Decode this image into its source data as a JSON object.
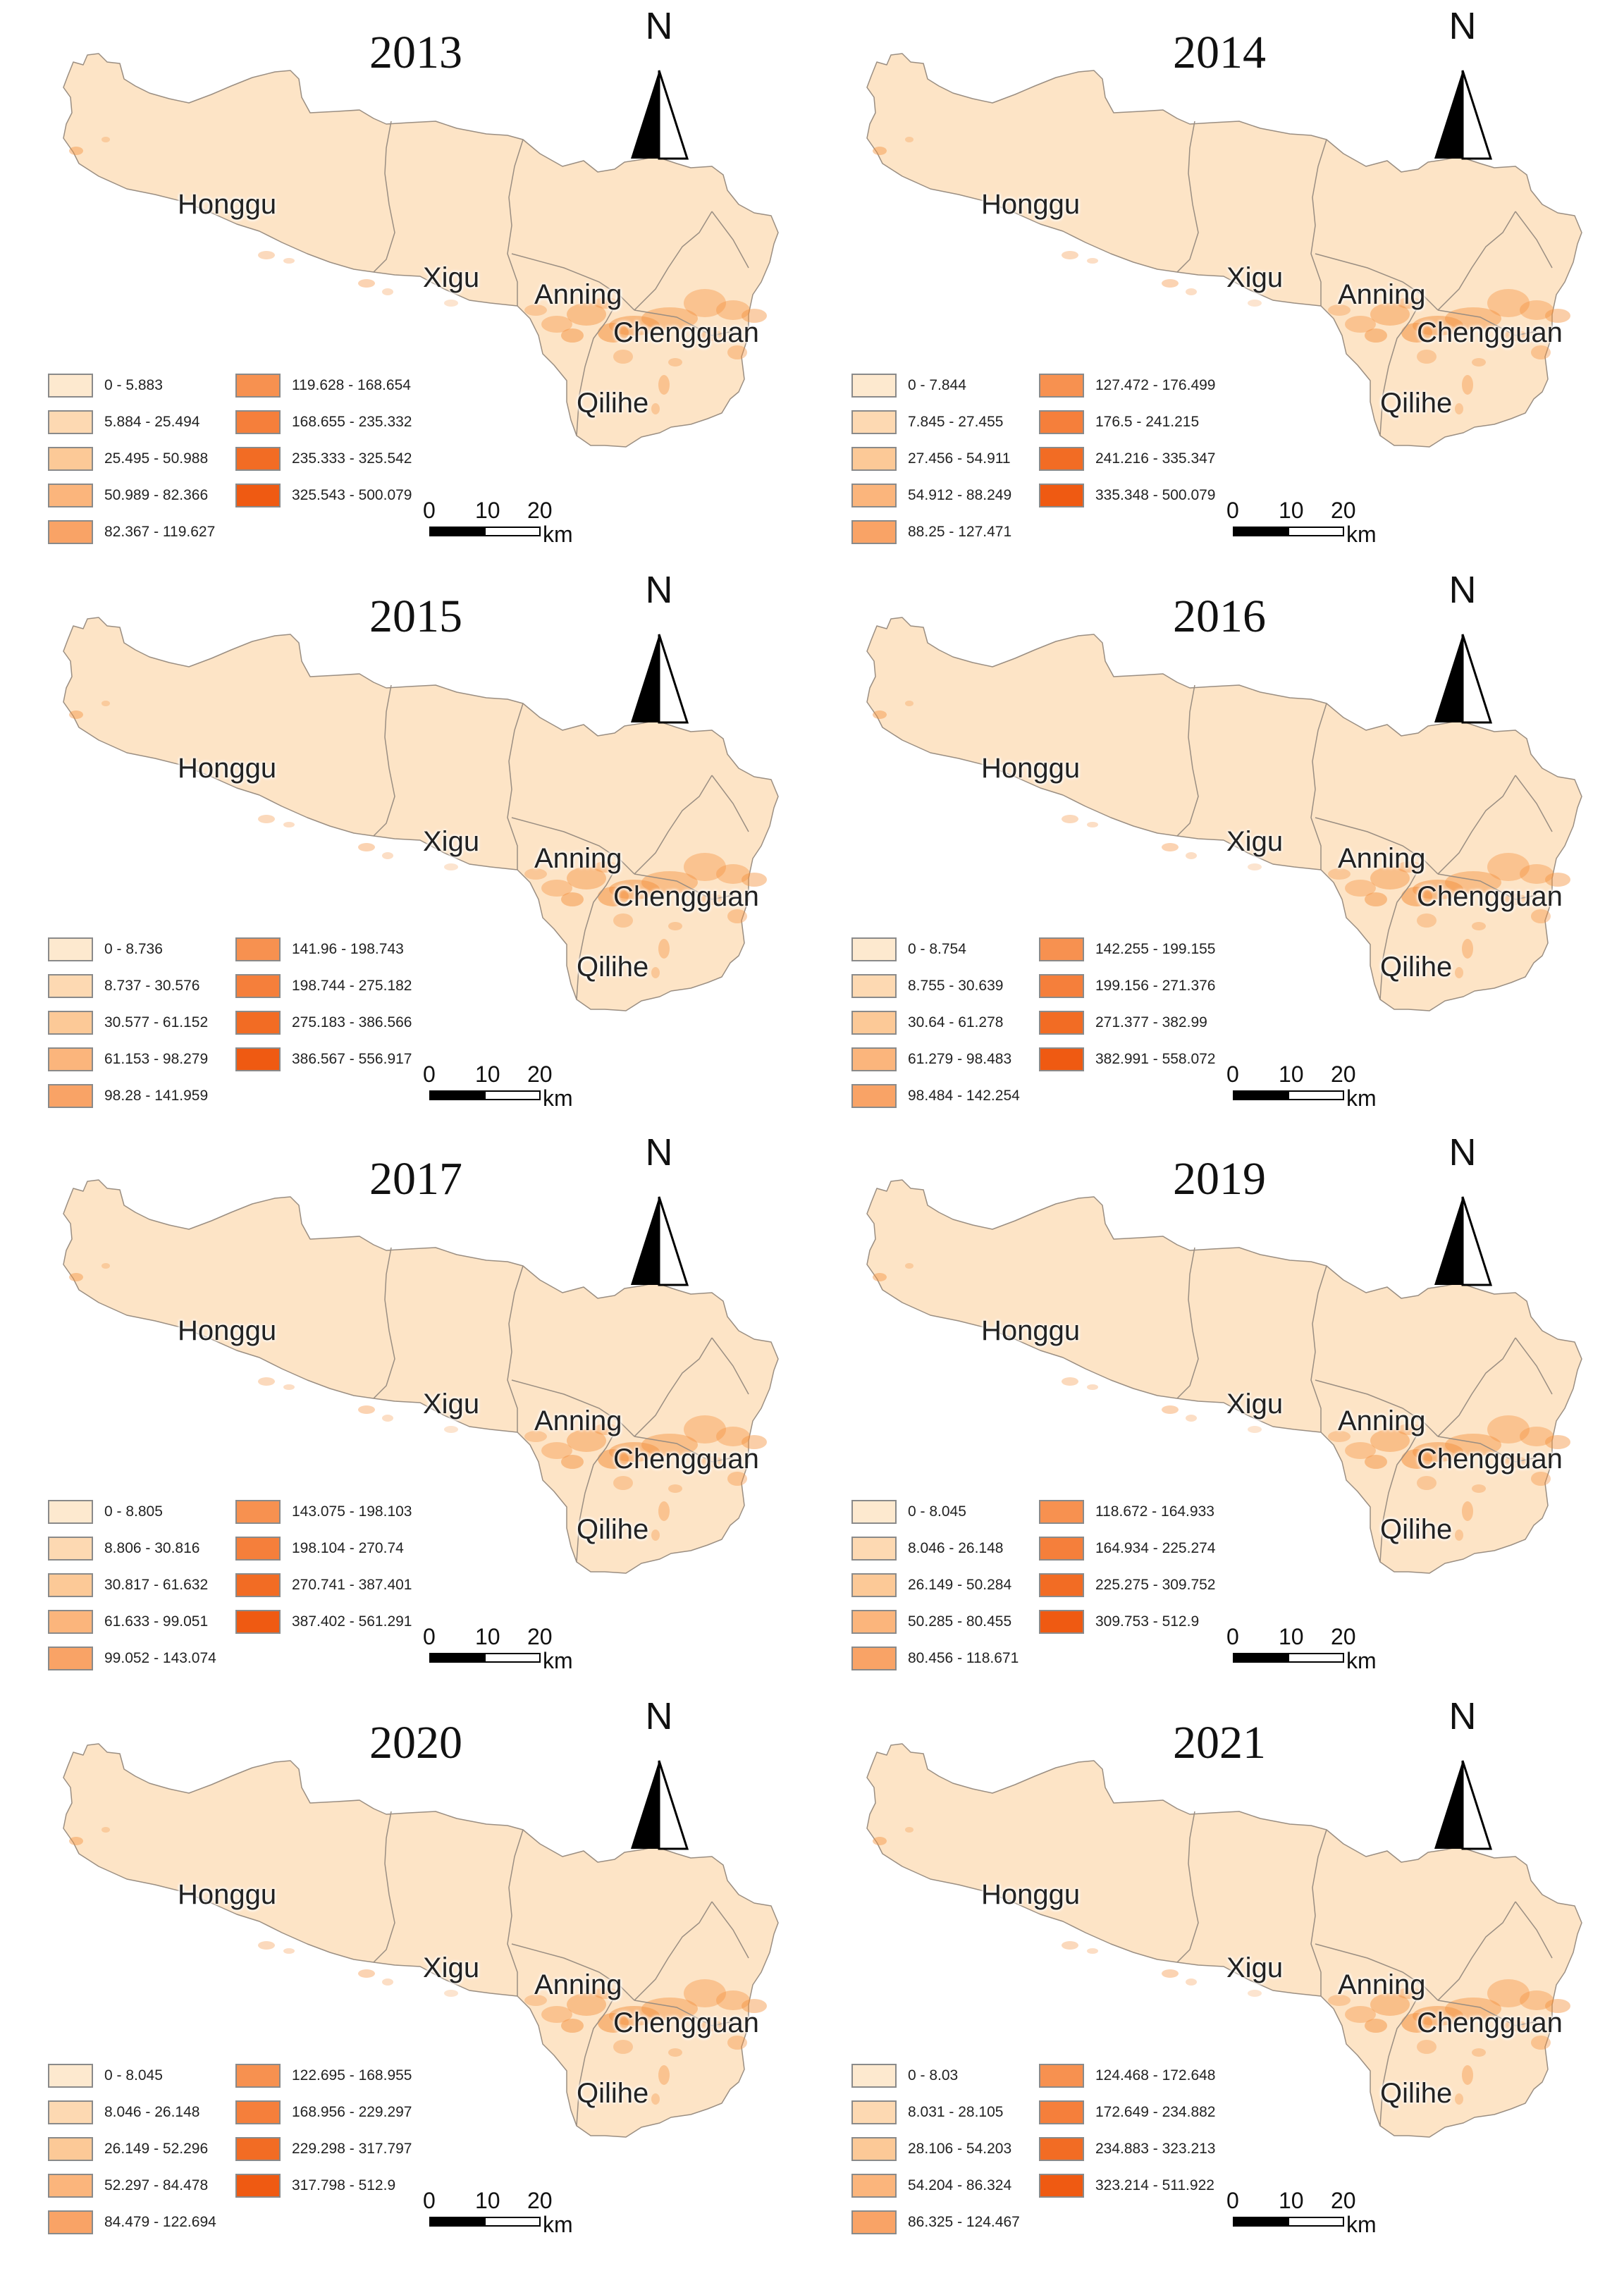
{
  "map_labels": {
    "districts": [
      "Honggu",
      "Xigu",
      "Anning",
      "Chengguan",
      "Qilihe"
    ],
    "north": "N",
    "scale_ticks": [
      "0",
      "10",
      "20"
    ],
    "scale_unit": "km"
  },
  "legend_colors": [
    "#fde9cf",
    "#fdd9b2",
    "#fcc997",
    "#fbb57c",
    "#f9a366",
    "#f79150",
    "#f57f3b",
    "#f26c24",
    "#ef5a12"
  ],
  "panels": [
    {
      "year": "2013",
      "legend": [
        "0 - 5.883",
        "5.884 - 25.494",
        "25.495 - 50.988",
        "50.989 - 82.366",
        "82.367 - 119.627",
        "119.628 - 168.654",
        "168.655 - 235.332",
        "235.333 - 325.542",
        "325.543 - 500.079"
      ]
    },
    {
      "year": "2014",
      "legend": [
        "0 - 7.844",
        "7.845 - 27.455",
        "27.456 - 54.911",
        "54.912 - 88.249",
        "88.25 - 127.471",
        "127.472 - 176.499",
        "176.5 - 241.215",
        "241.216 - 335.347",
        "335.348 - 500.079"
      ]
    },
    {
      "year": "2015",
      "legend": [
        "0 - 8.736",
        "8.737 - 30.576",
        "30.577 - 61.152",
        "61.153 - 98.279",
        "98.28 - 141.959",
        "141.96 - 198.743",
        "198.744 - 275.182",
        "275.183 - 386.566",
        "386.567 - 556.917"
      ]
    },
    {
      "year": "2016",
      "legend": [
        "0 - 8.754",
        "8.755 - 30.639",
        "30.64 - 61.278",
        "61.279 - 98.483",
        "98.484 - 142.254",
        "142.255 - 199.155",
        "199.156 - 271.376",
        "271.377 - 382.99",
        "382.991 - 558.072"
      ]
    },
    {
      "year": "2017",
      "legend": [
        "0 - 8.805",
        "8.806 - 30.816",
        "30.817 - 61.632",
        "61.633 - 99.051",
        "99.052 - 143.074",
        "143.075 - 198.103",
        "198.104 - 270.74",
        "270.741 - 387.401",
        "387.402 - 561.291"
      ]
    },
    {
      "year": "2019",
      "legend": [
        "0 - 8.045",
        "8.046 - 26.148",
        "26.149 - 50.284",
        "50.285 - 80.455",
        "80.456 - 118.671",
        "118.672 - 164.933",
        "164.934 - 225.274",
        "225.275 - 309.752",
        "309.753 - 512.9"
      ]
    },
    {
      "year": "2020",
      "legend": [
        "0 - 8.045",
        "8.046 - 26.148",
        "26.149 - 52.296",
        "52.297 - 84.478",
        "84.479 - 122.694",
        "122.695 - 168.955",
        "168.956 - 229.297",
        "229.298 - 317.797",
        "317.798 - 512.9"
      ]
    },
    {
      "year": "2021",
      "legend": [
        "0 - 8.03",
        "8.031 - 28.105",
        "28.106 - 54.203",
        "54.204 - 86.324",
        "86.325 - 124.467",
        "124.468 - 172.648",
        "172.649 - 234.882",
        "234.883 - 323.213",
        "323.214 - 511.922"
      ]
    }
  ]
}
